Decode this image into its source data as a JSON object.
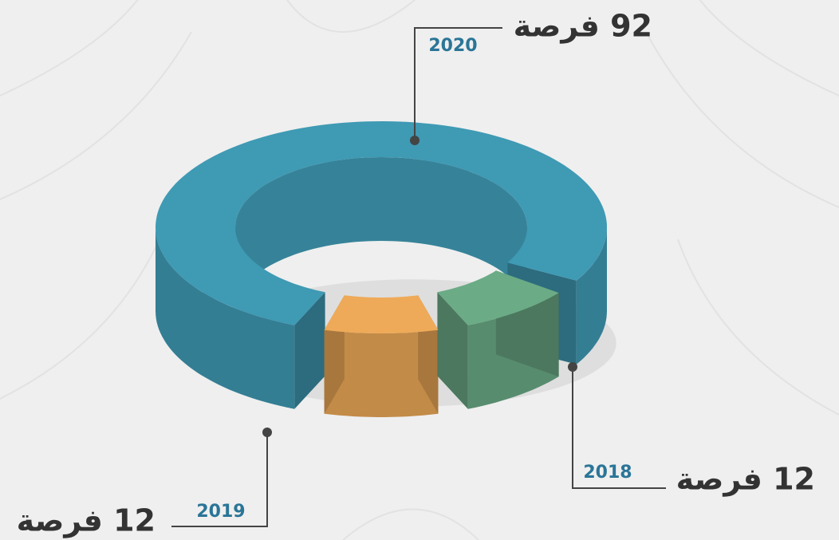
{
  "chart_data": {
    "type": "donut",
    "categories": [
      "2020",
      "2019",
      "2018"
    ],
    "values": [
      92,
      12,
      12
    ],
    "value_labels": [
      "92 فرصة",
      "12 فرصة",
      "12 فرصة"
    ],
    "colors": [
      "#3f9ab4",
      "#eeaa58",
      "#6bab86"
    ]
  }
}
